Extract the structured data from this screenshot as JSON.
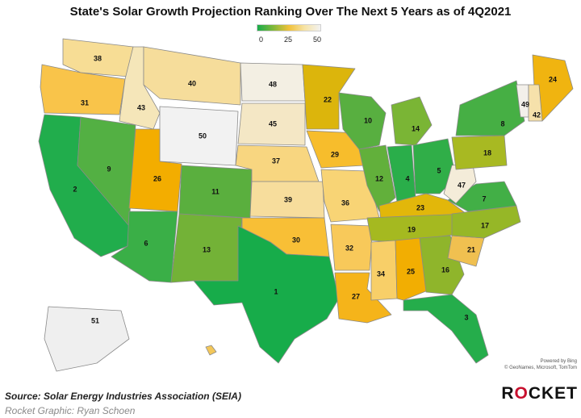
{
  "title": "State's Solar Growth Projection Ranking Over The Next 5 Years as of 4Q2021",
  "legend": {
    "min": "0",
    "mid": "25",
    "max": "50"
  },
  "states": [
    {
      "abbr": "WA",
      "rank": 38,
      "color": "#f7dd95"
    },
    {
      "abbr": "OR",
      "rank": 31,
      "color": "#f9c44a"
    },
    {
      "abbr": "CA",
      "rank": 2,
      "color": "#21ad4c"
    },
    {
      "abbr": "NV",
      "rank": 9,
      "color": "#53b043"
    },
    {
      "abbr": "ID",
      "rank": 43,
      "color": "#f5e6b9"
    },
    {
      "abbr": "MT",
      "rank": 40,
      "color": "#f6dd9b"
    },
    {
      "abbr": "WY",
      "rank": 50,
      "color": "#f2f2f2"
    },
    {
      "abbr": "UT",
      "rank": 26,
      "color": "#f3ad00"
    },
    {
      "abbr": "AZ",
      "rank": 6,
      "color": "#3aaf47"
    },
    {
      "abbr": "CO",
      "rank": 11,
      "color": "#5aaf3e"
    },
    {
      "abbr": "NM",
      "rank": 13,
      "color": "#73b237"
    },
    {
      "abbr": "ND",
      "rank": 48,
      "color": "#f3efe3"
    },
    {
      "abbr": "SD",
      "rank": 45,
      "color": "#f4e7c5"
    },
    {
      "abbr": "NE",
      "rank": 37,
      "color": "#f8d680"
    },
    {
      "abbr": "KS",
      "rank": 39,
      "color": "#f7dd9c"
    },
    {
      "abbr": "OK",
      "rank": 30,
      "color": "#f8bf36"
    },
    {
      "abbr": "TX",
      "rank": 1,
      "color": "#17ac4a"
    },
    {
      "abbr": "MN",
      "rank": 22,
      "color": "#dcb50c"
    },
    {
      "abbr": "IA",
      "rank": 29,
      "color": "#f7bd2c"
    },
    {
      "abbr": "MO",
      "rank": 36,
      "color": "#f8d475"
    },
    {
      "abbr": "AR",
      "rank": 32,
      "color": "#f8c95a"
    },
    {
      "abbr": "LA",
      "rank": 27,
      "color": "#f5b41a"
    },
    {
      "abbr": "WI",
      "rank": 10,
      "color": "#58af40"
    },
    {
      "abbr": "IL",
      "rank": 12,
      "color": "#62b03b"
    },
    {
      "abbr": "MI",
      "rank": 14,
      "color": "#7ab535"
    },
    {
      "abbr": "IN",
      "rank": 4,
      "color": "#2aae4a"
    },
    {
      "abbr": "OH",
      "rank": 5,
      "color": "#30ae48"
    },
    {
      "abbr": "KY",
      "rank": 23,
      "color": "#e2b70a"
    },
    {
      "abbr": "TN",
      "rank": 19,
      "color": "#a5b920"
    },
    {
      "abbr": "MS",
      "rank": 34,
      "color": "#f8cf68"
    },
    {
      "abbr": "AL",
      "rank": 25,
      "color": "#f2ae02"
    },
    {
      "abbr": "GA",
      "rank": 16,
      "color": "#8fb52b"
    },
    {
      "abbr": "FL",
      "rank": 3,
      "color": "#25ad4b"
    },
    {
      "abbr": "SC",
      "rank": 21,
      "color": "#f0c050"
    },
    {
      "abbr": "NC",
      "rank": 17,
      "color": "#96b727"
    },
    {
      "abbr": "VA",
      "rank": 7,
      "color": "#42af46"
    },
    {
      "abbr": "WV",
      "rank": 47,
      "color": "#f4ecd9"
    },
    {
      "abbr": "PA",
      "rank": 18,
      "color": "#a8b922"
    },
    {
      "abbr": "NY",
      "rank": 8,
      "color": "#46af44"
    },
    {
      "abbr": "ME",
      "rank": 24,
      "color": "#f0b410"
    },
    {
      "abbr": "VT",
      "rank": 49,
      "color": "#f3f0ea"
    },
    {
      "abbr": "NH",
      "rank": 42,
      "color": "#f6e1ab"
    },
    {
      "abbr": "AK",
      "rank": 51,
      "color": "#efefef"
    },
    {
      "abbr": "HI",
      "rank": null,
      "color": "#f3c75a"
    }
  ],
  "attribution": {
    "line1": "Powered by Bing",
    "line2": "© GeoNames, Microsoft, TomTom"
  },
  "source": "Source: Solar Energy Industries Association (SEIA)",
  "credit": "Rocket Graphic: Ryan Schoen",
  "brand": {
    "pre": "R",
    "o": "O",
    "post": "CKET"
  }
}
